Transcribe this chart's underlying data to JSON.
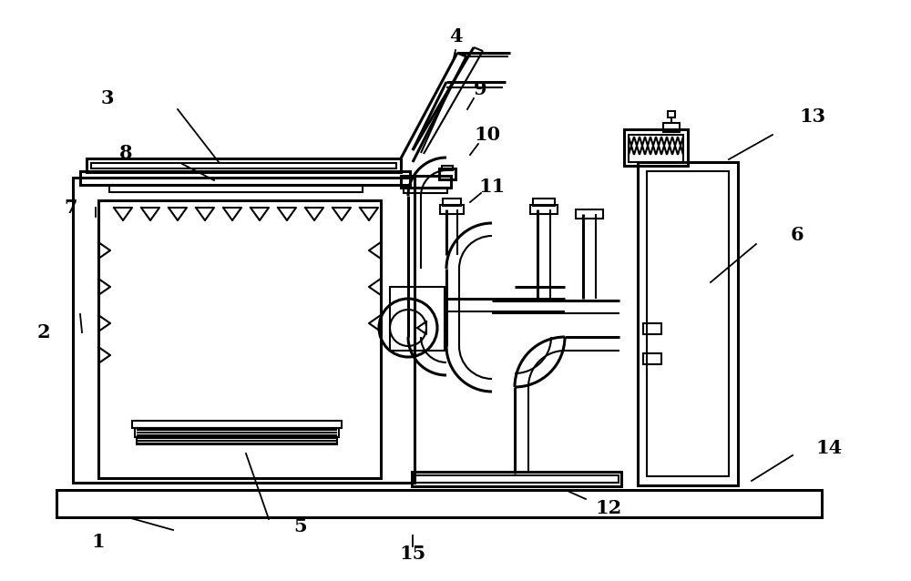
{
  "bg_color": "#ffffff",
  "line_color": "#000000",
  "lw": 1.5,
  "lw2": 2.2,
  "figsize": [
    10.0,
    6.38
  ],
  "dpi": 100,
  "labels": [
    [
      "1",
      108,
      595,
      190,
      582,
      140,
      568
    ],
    [
      "2",
      48,
      365,
      90,
      365,
      88,
      345
    ],
    [
      "3",
      118,
      108,
      195,
      120,
      240,
      178
    ],
    [
      "4",
      500,
      40,
      500,
      55,
      497,
      68
    ],
    [
      "5",
      330,
      578,
      295,
      570,
      270,
      498
    ],
    [
      "6",
      875,
      258,
      830,
      268,
      780,
      310
    ],
    [
      "7",
      78,
      228,
      105,
      238,
      105,
      228
    ],
    [
      "8",
      138,
      168,
      200,
      180,
      235,
      198
    ],
    [
      "9",
      527,
      98,
      520,
      108,
      513,
      120
    ],
    [
      "10",
      535,
      148,
      525,
      158,
      516,
      170
    ],
    [
      "11",
      540,
      205,
      528,
      212,
      516,
      222
    ],
    [
      "12",
      668,
      558,
      643,
      548,
      625,
      540
    ],
    [
      "13",
      892,
      128,
      848,
      148,
      800,
      175
    ],
    [
      "14",
      910,
      492,
      870,
      500,
      825,
      528
    ],
    [
      "15",
      453,
      608,
      453,
      600,
      453,
      588
    ]
  ]
}
